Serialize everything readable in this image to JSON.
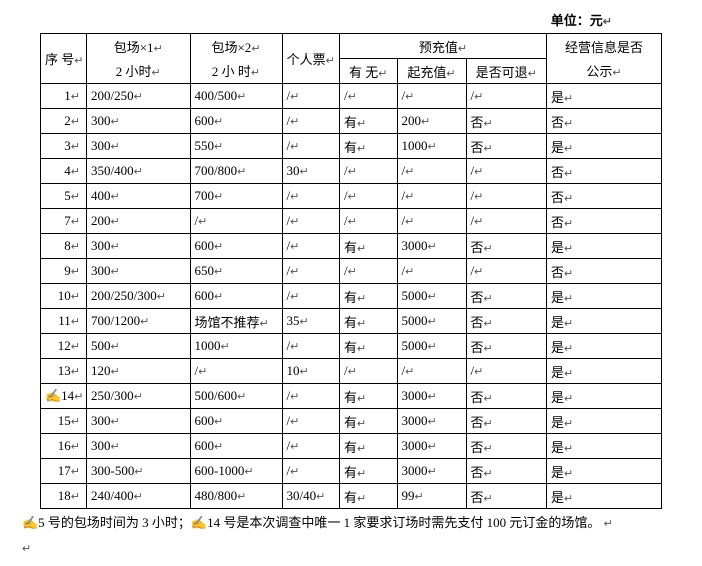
{
  "unit_label": "单位：元",
  "headers": {
    "seq": "序  号",
    "b1_line1": "包场×1",
    "b1_line2": "2 小时",
    "b2_line1": "包场×2",
    "b2_line2": "2   小  时",
    "personal": "个人票",
    "precharge": "预充值",
    "hasno": "有 无",
    "charge": "起充值",
    "refund": "是否可退",
    "public_line1": "经营信息是否",
    "public_line2": "公示"
  },
  "rows": [
    {
      "seq": "1",
      "b1": "200/250",
      "b2": "400/500",
      "personal": "/",
      "hasno": "/",
      "charge": "/",
      "refund": "/",
      "public": "是"
    },
    {
      "seq": "2",
      "b1": "300",
      "b2": "600",
      "personal": "/",
      "hasno": "有",
      "charge": "200",
      "refund": "否",
      "public": "否"
    },
    {
      "seq": "3",
      "b1": "300",
      "b2": "550",
      "personal": "/",
      "hasno": "有",
      "charge": "1000",
      "refund": "否",
      "public": "是"
    },
    {
      "seq": "4",
      "b1": "350/400",
      "b2": "700/800",
      "personal": "30",
      "hasno": "/",
      "charge": "/",
      "refund": "/",
      "public": "否"
    },
    {
      "seq": "5",
      "b1": "400",
      "b2": "700",
      "personal": "/",
      "hasno": "/",
      "charge": "/",
      "refund": "/",
      "public": "否"
    },
    {
      "seq": "7",
      "b1": "200",
      "b2": "/",
      "personal": "/",
      "hasno": "/",
      "charge": "/",
      "refund": "/",
      "public": "否"
    },
    {
      "seq": "8",
      "b1": "300",
      "b2": "600",
      "personal": "/",
      "hasno": "有",
      "charge": "3000",
      "refund": "否",
      "public": "是"
    },
    {
      "seq": "9",
      "b1": "300",
      "b2": "650",
      "personal": "/",
      "hasno": "/",
      "charge": "/",
      "refund": "/",
      "public": "否"
    },
    {
      "seq": "10",
      "b1": "200/250/300",
      "b2": "600",
      "personal": "/",
      "hasno": "有",
      "charge": "5000",
      "refund": "否",
      "public": "是"
    },
    {
      "seq": "11",
      "b1": "700/1200",
      "b2": "场馆不推荐",
      "personal": "35",
      "hasno": "有",
      "charge": "5000",
      "refund": "否",
      "public": "是"
    },
    {
      "seq": "12",
      "b1": "500",
      "b2": "1000",
      "personal": "/",
      "hasno": "有",
      "charge": "5000",
      "refund": "否",
      "public": "是"
    },
    {
      "seq": "13",
      "b1": "120",
      "b2": "/",
      "personal": "10",
      "hasno": "/",
      "charge": "/",
      "refund": "/",
      "public": "是"
    },
    {
      "seq": "14",
      "b1": "250/300",
      "b2": "500/600",
      "personal": "/",
      "hasno": "有",
      "charge": "3000",
      "refund": "否",
      "public": "是",
      "seq_prefix": "✍"
    },
    {
      "seq": "15",
      "b1": "300",
      "b2": "600",
      "personal": "/",
      "hasno": "有",
      "charge": "3000",
      "refund": "否",
      "public": "是"
    },
    {
      "seq": "16",
      "b1": "300",
      "b2": "600",
      "personal": "/",
      "hasno": "有",
      "charge": "3000",
      "refund": "否",
      "public": "是"
    },
    {
      "seq": "17",
      "b1": "300-500",
      "b2": "600-1000",
      "personal": "/",
      "hasno": "有",
      "charge": "3000",
      "refund": "否",
      "public": "是"
    },
    {
      "seq": "18",
      "b1": "240/400",
      "b2": "480/800",
      "personal": "30/40",
      "hasno": "有",
      "charge": "99",
      "refund": "否",
      "public": "是"
    }
  ],
  "footnote": "✍5 号的包场时间为 3 小时；✍14 号是本次调查中唯一 1 家要求订场时需先支付 100 元订金的场馆。",
  "marker": "↵"
}
